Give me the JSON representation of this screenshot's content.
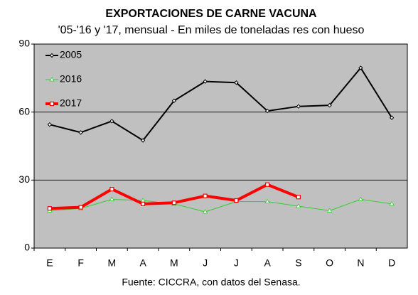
{
  "chart_data": {
    "type": "line",
    "title": "EXPORTACIONES DE CARNE VACUNA",
    "subtitle": "'05-'16 y '17, mensual - En miles de toneladas res con hueso",
    "source": "Fuente: CICCRA, con datos del Senasa.",
    "categories": [
      "E",
      "F",
      "M",
      "A",
      "M",
      "J",
      "J",
      "A",
      "S",
      "O",
      "N",
      "D"
    ],
    "series": [
      {
        "name": "2005",
        "color": "#000000",
        "marker": "diamond",
        "values": [
          54.5,
          51,
          56,
          47.5,
          65,
          73.5,
          73,
          60.5,
          62.5,
          63,
          79.5,
          57.5
        ]
      },
      {
        "name": "2016",
        "color": "#33cc33",
        "marker": "triangle",
        "values": [
          16.5,
          17.5,
          21.5,
          21,
          19.5,
          16,
          20.5,
          20.5,
          18.5,
          16.5,
          21.5,
          19.5
        ]
      },
      {
        "name": "2017",
        "color": "#ff0000",
        "marker": "square",
        "values": [
          17.5,
          18,
          26,
          19.5,
          20,
          23,
          21,
          28,
          22.5,
          null,
          null,
          null
        ]
      }
    ],
    "ylim": [
      0,
      90
    ],
    "yticks": [
      0,
      30,
      60,
      90
    ],
    "grid": true,
    "legend": "upper left",
    "plot_background": "#c0c0c0"
  }
}
